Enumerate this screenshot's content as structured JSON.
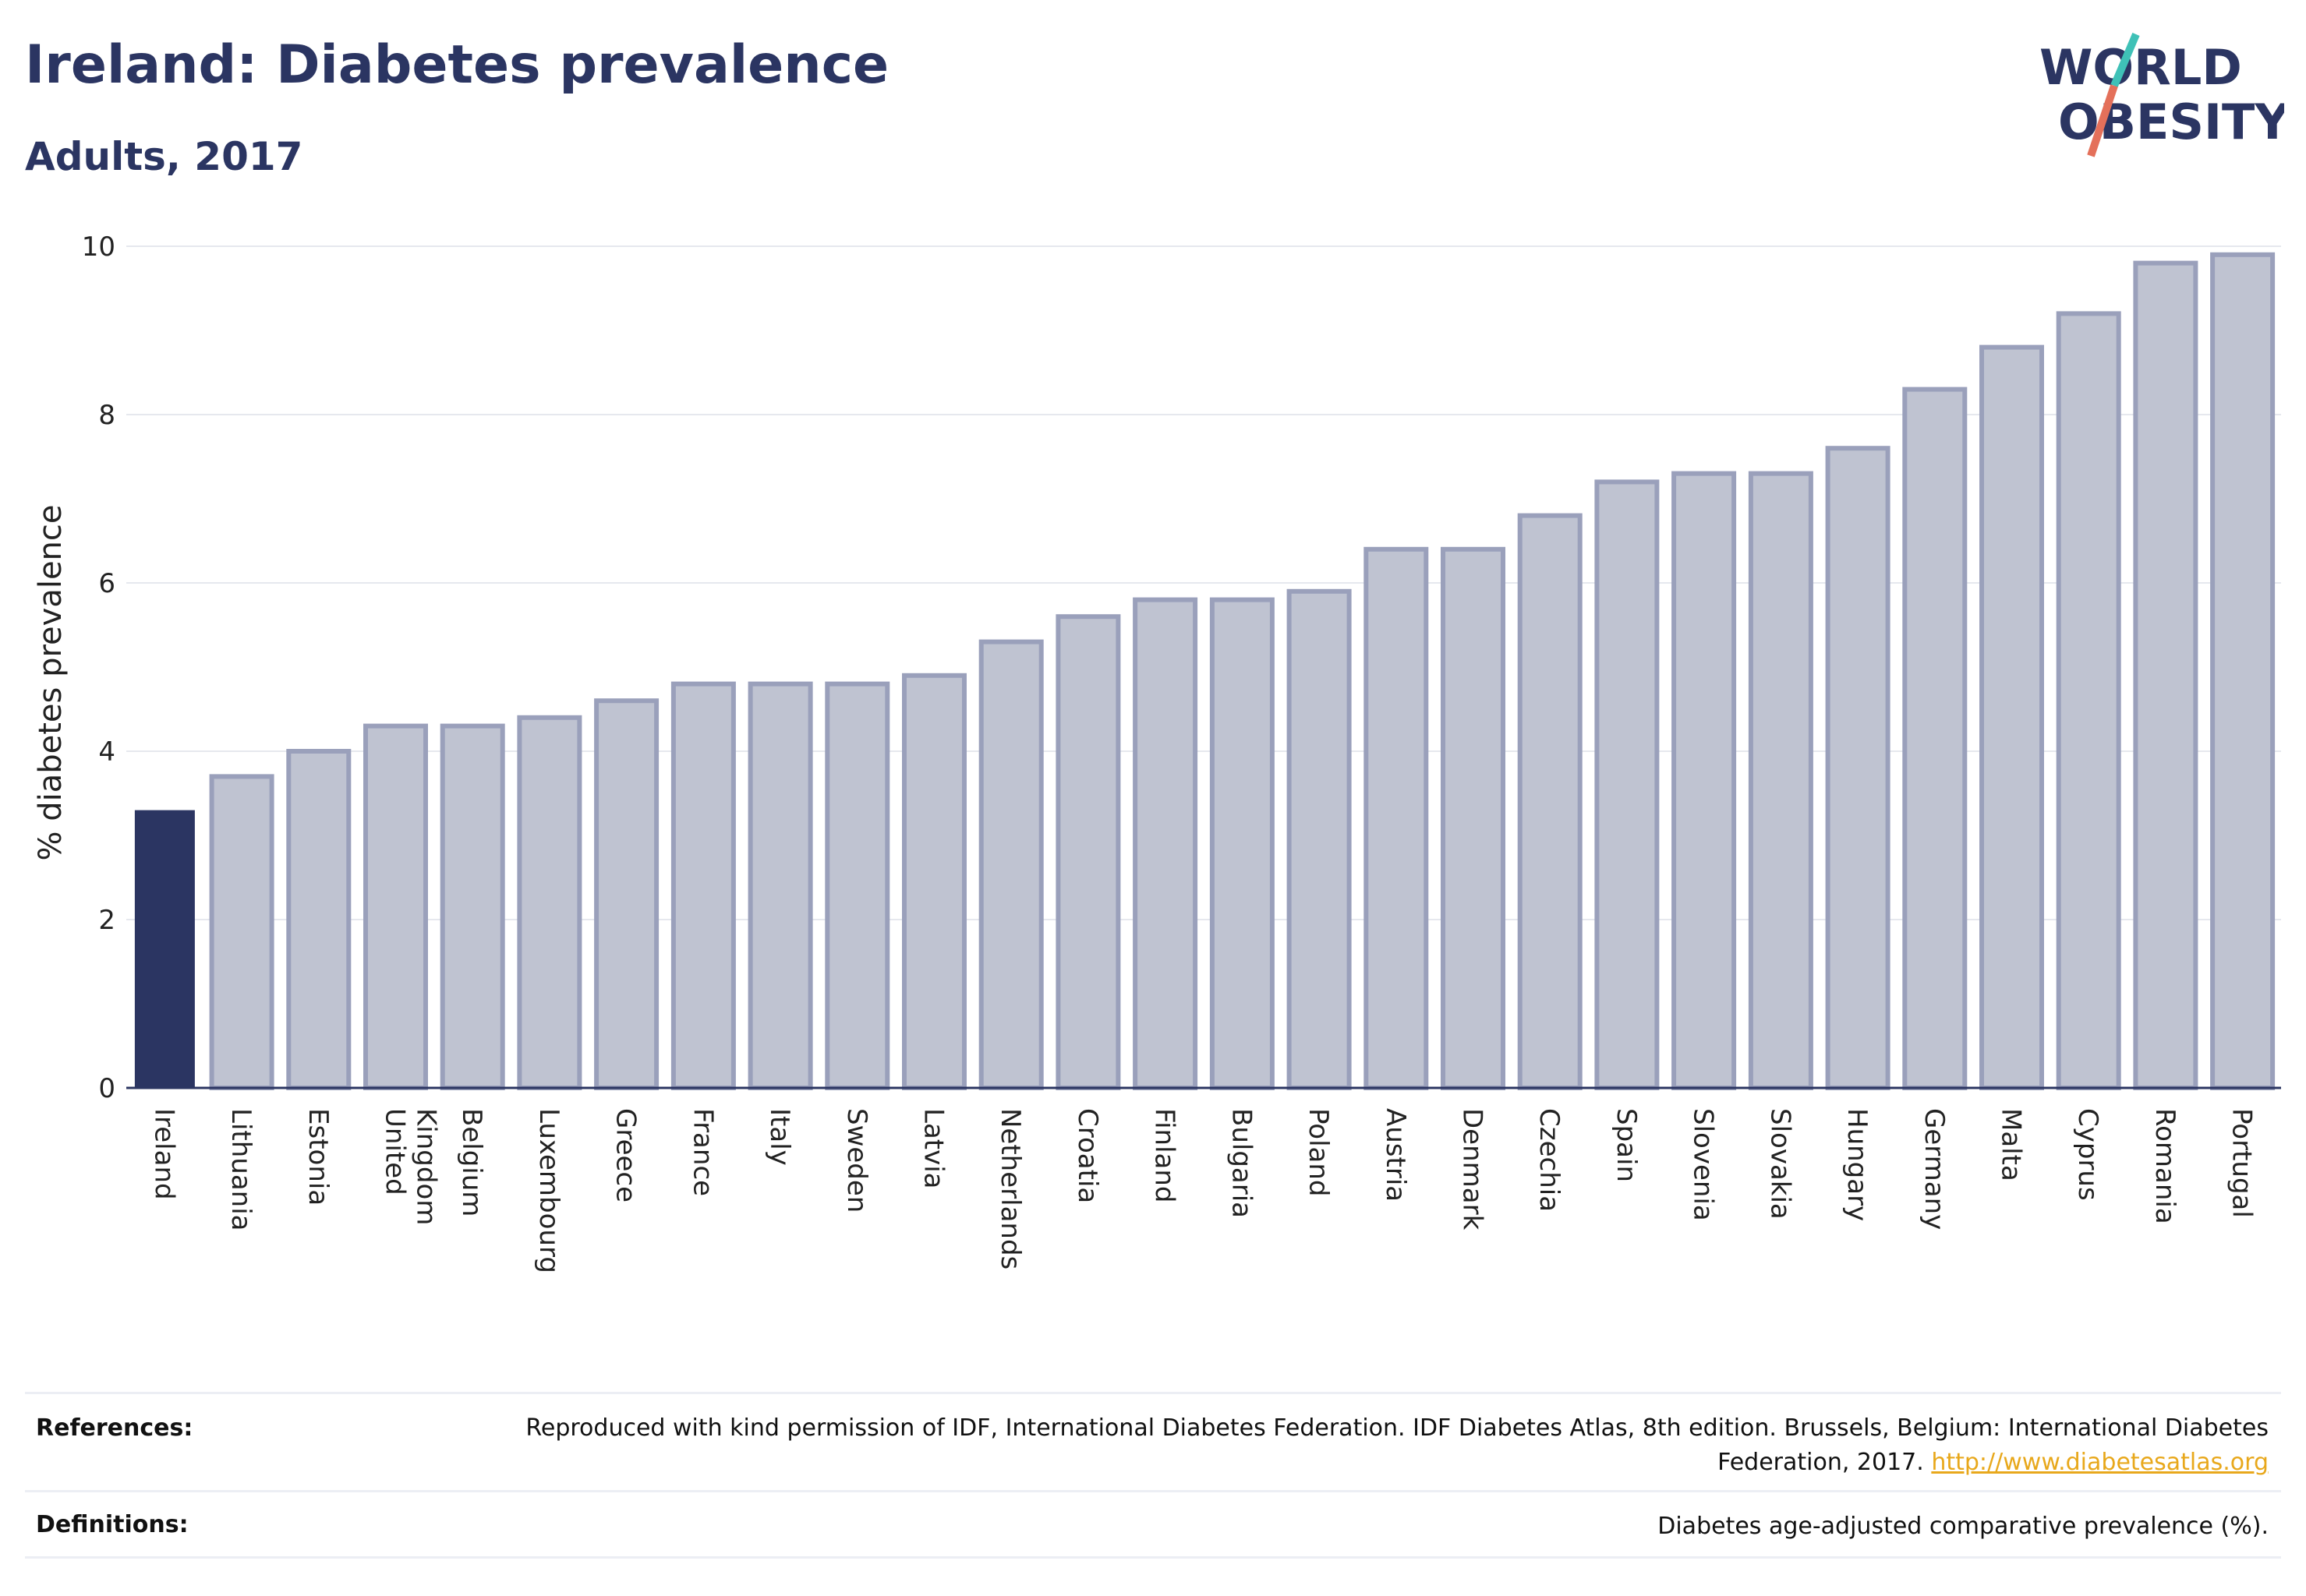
{
  "header": {
    "title": "Ireland: Diabetes prevalence",
    "subtitle": "Adults, 2017"
  },
  "logo": {
    "line1": "WORLD",
    "line2": "OBESITY",
    "colors": {
      "text": "#2b3562",
      "slash_teal": "#3fc1b7",
      "slash_coral": "#e4705a"
    }
  },
  "chart_data": {
    "type": "bar",
    "title": "Ireland: Diabetes prevalence",
    "subtitle": "Adults, 2017",
    "xlabel": "",
    "ylabel": "% diabetes prevalence",
    "ylim": [
      0,
      10
    ],
    "yticks": [
      0,
      2,
      4,
      6,
      8,
      10
    ],
    "grid": true,
    "highlight": "Ireland",
    "categories": [
      "Ireland",
      "Lithuania",
      "Estonia",
      "United Kingdom",
      "Belgium",
      "Luxembourg",
      "Greece",
      "France",
      "Italy",
      "Sweden",
      "Latvia",
      "Netherlands",
      "Croatia",
      "Finland",
      "Bulgaria",
      "Poland",
      "Austria",
      "Denmark",
      "Czechia",
      "Spain",
      "Slovenia",
      "Slovakia",
      "Hungary",
      "Germany",
      "Malta",
      "Cyprus",
      "Romania",
      "Portugal"
    ],
    "values": [
      3.3,
      3.7,
      4.0,
      4.3,
      4.3,
      4.4,
      4.6,
      4.8,
      4.8,
      4.8,
      4.9,
      5.3,
      5.6,
      5.8,
      5.8,
      5.9,
      6.4,
      6.4,
      6.8,
      7.2,
      7.3,
      7.3,
      7.6,
      8.3,
      8.8,
      9.2,
      9.8,
      9.9
    ],
    "colors": {
      "highlight": "#2b3562",
      "bar_fill": "#bfc3d1",
      "bar_stroke": "#9aa0bb",
      "grid": "#e6e8ee",
      "axis": "#2b3562"
    }
  },
  "footer": {
    "references_label": "References:",
    "references_text": "Reproduced with kind permission of IDF, International Diabetes Federation. IDF Diabetes Atlas, 8th edition. Brussels, Belgium: International Diabetes Federation, 2017.",
    "references_link": "http://www.diabetesatlas.org",
    "definitions_label": "Definitions:",
    "definitions_text": "Diabetes age-adjusted comparative prevalence (%)."
  }
}
